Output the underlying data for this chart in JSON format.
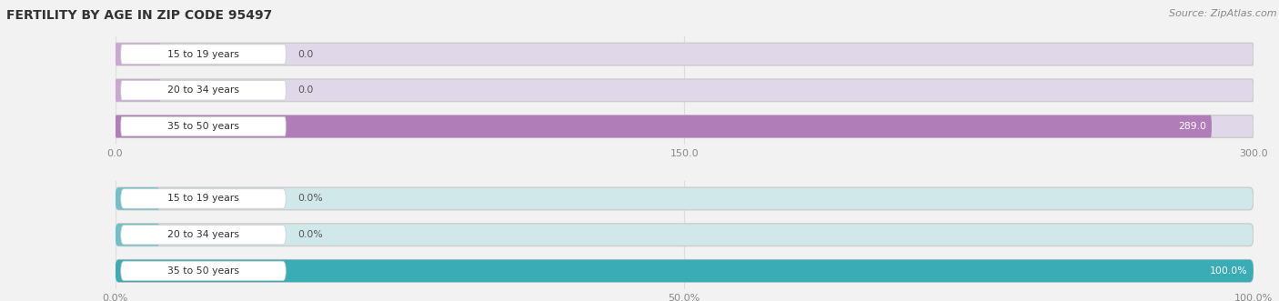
{
  "title": "FERTILITY BY AGE IN ZIP CODE 95497",
  "source": "Source: ZipAtlas.com",
  "bg_color": "#f2f2f2",
  "top_chart": {
    "categories": [
      "15 to 19 years",
      "20 to 34 years",
      "35 to 50 years"
    ],
    "values": [
      0.0,
      0.0,
      289.0
    ],
    "xlim": [
      0,
      300
    ],
    "xticks": [
      0.0,
      150.0,
      300.0
    ],
    "xtick_labels": [
      "0.0",
      "150.0",
      "300.0"
    ],
    "bar_color": "#b07db8",
    "bar_bg_color": "#e0d8e8",
    "bar_accent_color": "#c8a8d0"
  },
  "bottom_chart": {
    "categories": [
      "15 to 19 years",
      "20 to 34 years",
      "35 to 50 years"
    ],
    "values": [
      0.0,
      0.0,
      100.0
    ],
    "xlim": [
      0,
      100
    ],
    "xticks": [
      0.0,
      50.0,
      100.0
    ],
    "xtick_labels": [
      "0.0%",
      "50.0%",
      "100.0%"
    ],
    "bar_color": "#3aacb5",
    "bar_bg_color": "#d0e8ea",
    "bar_accent_color": "#70c0c8"
  },
  "label_bg": "#ffffff",
  "label_fg": "#333333",
  "value_fg_outside": "#555555",
  "value_fg_inside": "#ffffff",
  "grid_color": "#dddddd",
  "title_color": "#333333",
  "title_fontsize": 10,
  "source_color": "#888888",
  "source_fontsize": 8,
  "tick_color": "#888888",
  "tick_fontsize": 8
}
